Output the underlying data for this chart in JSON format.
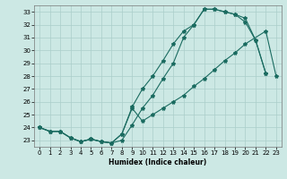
{
  "xlabel": "Humidex (Indice chaleur)",
  "bg_color": "#cce8e4",
  "grid_color": "#aaceca",
  "line_color": "#1a6b60",
  "xlim": [
    -0.5,
    23.5
  ],
  "ylim": [
    22.5,
    33.5
  ],
  "xticks": [
    0,
    1,
    2,
    3,
    4,
    5,
    6,
    7,
    8,
    9,
    10,
    11,
    12,
    13,
    14,
    15,
    16,
    17,
    18,
    19,
    20,
    21,
    22,
    23
  ],
  "yticks": [
    23,
    24,
    25,
    26,
    27,
    28,
    29,
    30,
    31,
    32,
    33
  ],
  "line1_x": [
    0,
    1,
    2,
    3,
    4,
    5,
    6,
    7,
    8,
    9,
    10,
    11,
    12,
    13,
    14,
    15,
    16,
    17,
    18,
    19,
    20,
    21,
    22
  ],
  "line1_y": [
    24.0,
    23.7,
    23.7,
    23.2,
    22.9,
    23.1,
    22.9,
    22.8,
    23.5,
    25.6,
    27.0,
    28.0,
    29.2,
    30.5,
    31.5,
    32.0,
    33.2,
    33.2,
    33.0,
    32.8,
    32.2,
    30.8,
    28.2
  ],
  "line2_x": [
    0,
    1,
    2,
    3,
    4,
    5,
    6,
    7,
    8,
    9,
    10,
    11,
    12,
    13,
    14,
    15,
    16,
    17,
    18,
    19,
    20,
    21,
    22
  ],
  "line2_y": [
    24.0,
    23.7,
    23.7,
    23.2,
    22.9,
    23.1,
    22.9,
    22.8,
    23.0,
    24.2,
    25.5,
    26.5,
    27.8,
    29.0,
    31.0,
    32.0,
    33.2,
    33.2,
    33.0,
    32.8,
    32.5,
    30.8,
    28.2
  ],
  "line3_x": [
    0,
    1,
    2,
    3,
    4,
    5,
    6,
    7,
    8,
    9,
    10,
    11,
    12,
    13,
    14,
    15,
    16,
    17,
    18,
    19,
    20,
    22,
    23
  ],
  "line3_y": [
    24.0,
    23.7,
    23.7,
    23.2,
    22.9,
    23.1,
    22.9,
    22.8,
    23.5,
    25.5,
    24.5,
    25.0,
    25.5,
    26.0,
    26.5,
    27.2,
    27.8,
    28.5,
    29.2,
    29.8,
    30.5,
    31.5,
    28.0
  ]
}
